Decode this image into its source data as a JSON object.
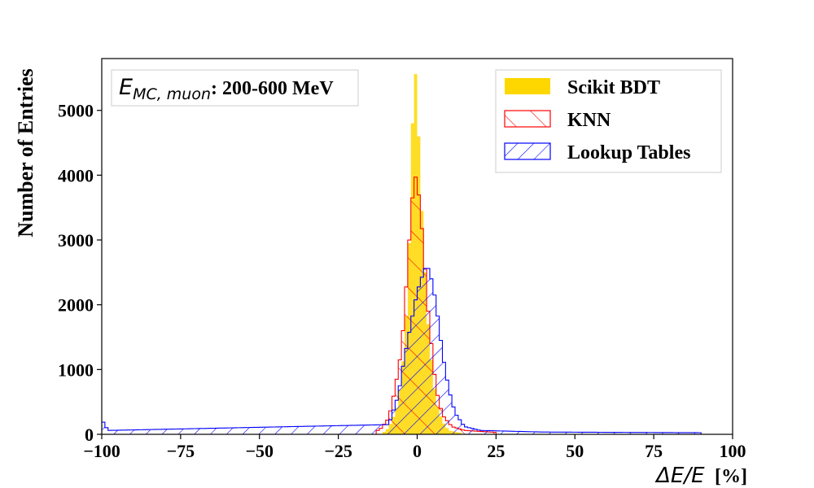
{
  "chart_data": {
    "type": "histogram",
    "xlabel_prefix": "ΔE/E",
    "xlabel_unit": "[%]",
    "ylabel": "Number of Entries",
    "xlim": [
      -100,
      100
    ],
    "ylim": [
      0,
      5800
    ],
    "xticks": [
      -100,
      -75,
      -50,
      -25,
      0,
      25,
      50,
      75,
      100
    ],
    "xtick_labels": [
      "−100",
      "−75",
      "−50",
      "−25",
      "0",
      "25",
      "50",
      "75",
      "100"
    ],
    "yticks": [
      0,
      1000,
      2000,
      3000,
      4000,
      5000
    ],
    "ytick_labels": [
      "0",
      "1000",
      "2000",
      "3000",
      "4000",
      "5000"
    ],
    "annotation_math": "E",
    "annotation_subscript": "MC, muon",
    "annotation_text": ": 200-600 MeV",
    "legend_position": "top-right",
    "series": [
      {
        "name": "Scikit BDT",
        "style": "filled",
        "color": "#FFD700",
        "peaks": [
          {
            "x": -10,
            "y": 40
          },
          {
            "x": -8,
            "y": 200
          },
          {
            "x": -6,
            "y": 480
          },
          {
            "x": -5,
            "y": 900
          },
          {
            "x": -4,
            "y": 1350
          },
          {
            "x": -3,
            "y": 2300
          },
          {
            "x": -2,
            "y": 3600
          },
          {
            "x": -1.5,
            "y": 4800
          },
          {
            "x": -0.5,
            "y": 5560
          },
          {
            "x": 0,
            "y": 5470
          },
          {
            "x": 0.5,
            "y": 4600
          },
          {
            "x": 1,
            "y": 3900
          },
          {
            "x": 2,
            "y": 3000
          },
          {
            "x": 3,
            "y": 2000
          },
          {
            "x": 4,
            "y": 1400
          },
          {
            "x": 5,
            "y": 900
          },
          {
            "x": 6,
            "y": 500
          },
          {
            "x": 8,
            "y": 200
          },
          {
            "x": 10,
            "y": 60
          },
          {
            "x": 14,
            "y": 20
          }
        ]
      },
      {
        "name": "KNN",
        "style": "hatch-forward",
        "color": "#ff0000",
        "peaks": [
          {
            "x": -12,
            "y": 60
          },
          {
            "x": -9,
            "y": 250
          },
          {
            "x": -7,
            "y": 700
          },
          {
            "x": -5,
            "y": 1300
          },
          {
            "x": -4,
            "y": 1900
          },
          {
            "x": -3,
            "y": 2650
          },
          {
            "x": -2,
            "y": 3350
          },
          {
            "x": -1,
            "y": 3950
          },
          {
            "x": 0,
            "y": 3990
          },
          {
            "x": 1,
            "y": 3400
          },
          {
            "x": 2,
            "y": 2950
          },
          {
            "x": 3,
            "y": 2150
          },
          {
            "x": 4,
            "y": 1650
          },
          {
            "x": 5,
            "y": 1150
          },
          {
            "x": 6,
            "y": 700
          },
          {
            "x": 8,
            "y": 300
          },
          {
            "x": 11,
            "y": 120
          },
          {
            "x": 15,
            "y": 60
          },
          {
            "x": 25,
            "y": 30
          }
        ]
      },
      {
        "name": "Lookup Tables",
        "style": "hatch-back",
        "color": "#0000ff",
        "peaks": [
          {
            "x": -100,
            "y": 230
          },
          {
            "x": -98,
            "y": 60
          },
          {
            "x": -9,
            "y": 150
          },
          {
            "x": -6,
            "y": 600
          },
          {
            "x": -4,
            "y": 1200
          },
          {
            "x": -2,
            "y": 1700
          },
          {
            "x": 0,
            "y": 2200
          },
          {
            "x": 2,
            "y": 2500
          },
          {
            "x": 3,
            "y": 2620
          },
          {
            "x": 4,
            "y": 2500
          },
          {
            "x": 5,
            "y": 2300
          },
          {
            "x": 6,
            "y": 2000
          },
          {
            "x": 7,
            "y": 1650
          },
          {
            "x": 8,
            "y": 1250
          },
          {
            "x": 10,
            "y": 700
          },
          {
            "x": 12,
            "y": 330
          },
          {
            "x": 15,
            "y": 120
          },
          {
            "x": 20,
            "y": 60
          },
          {
            "x": 40,
            "y": 35
          },
          {
            "x": 90,
            "y": 25
          }
        ]
      }
    ]
  }
}
